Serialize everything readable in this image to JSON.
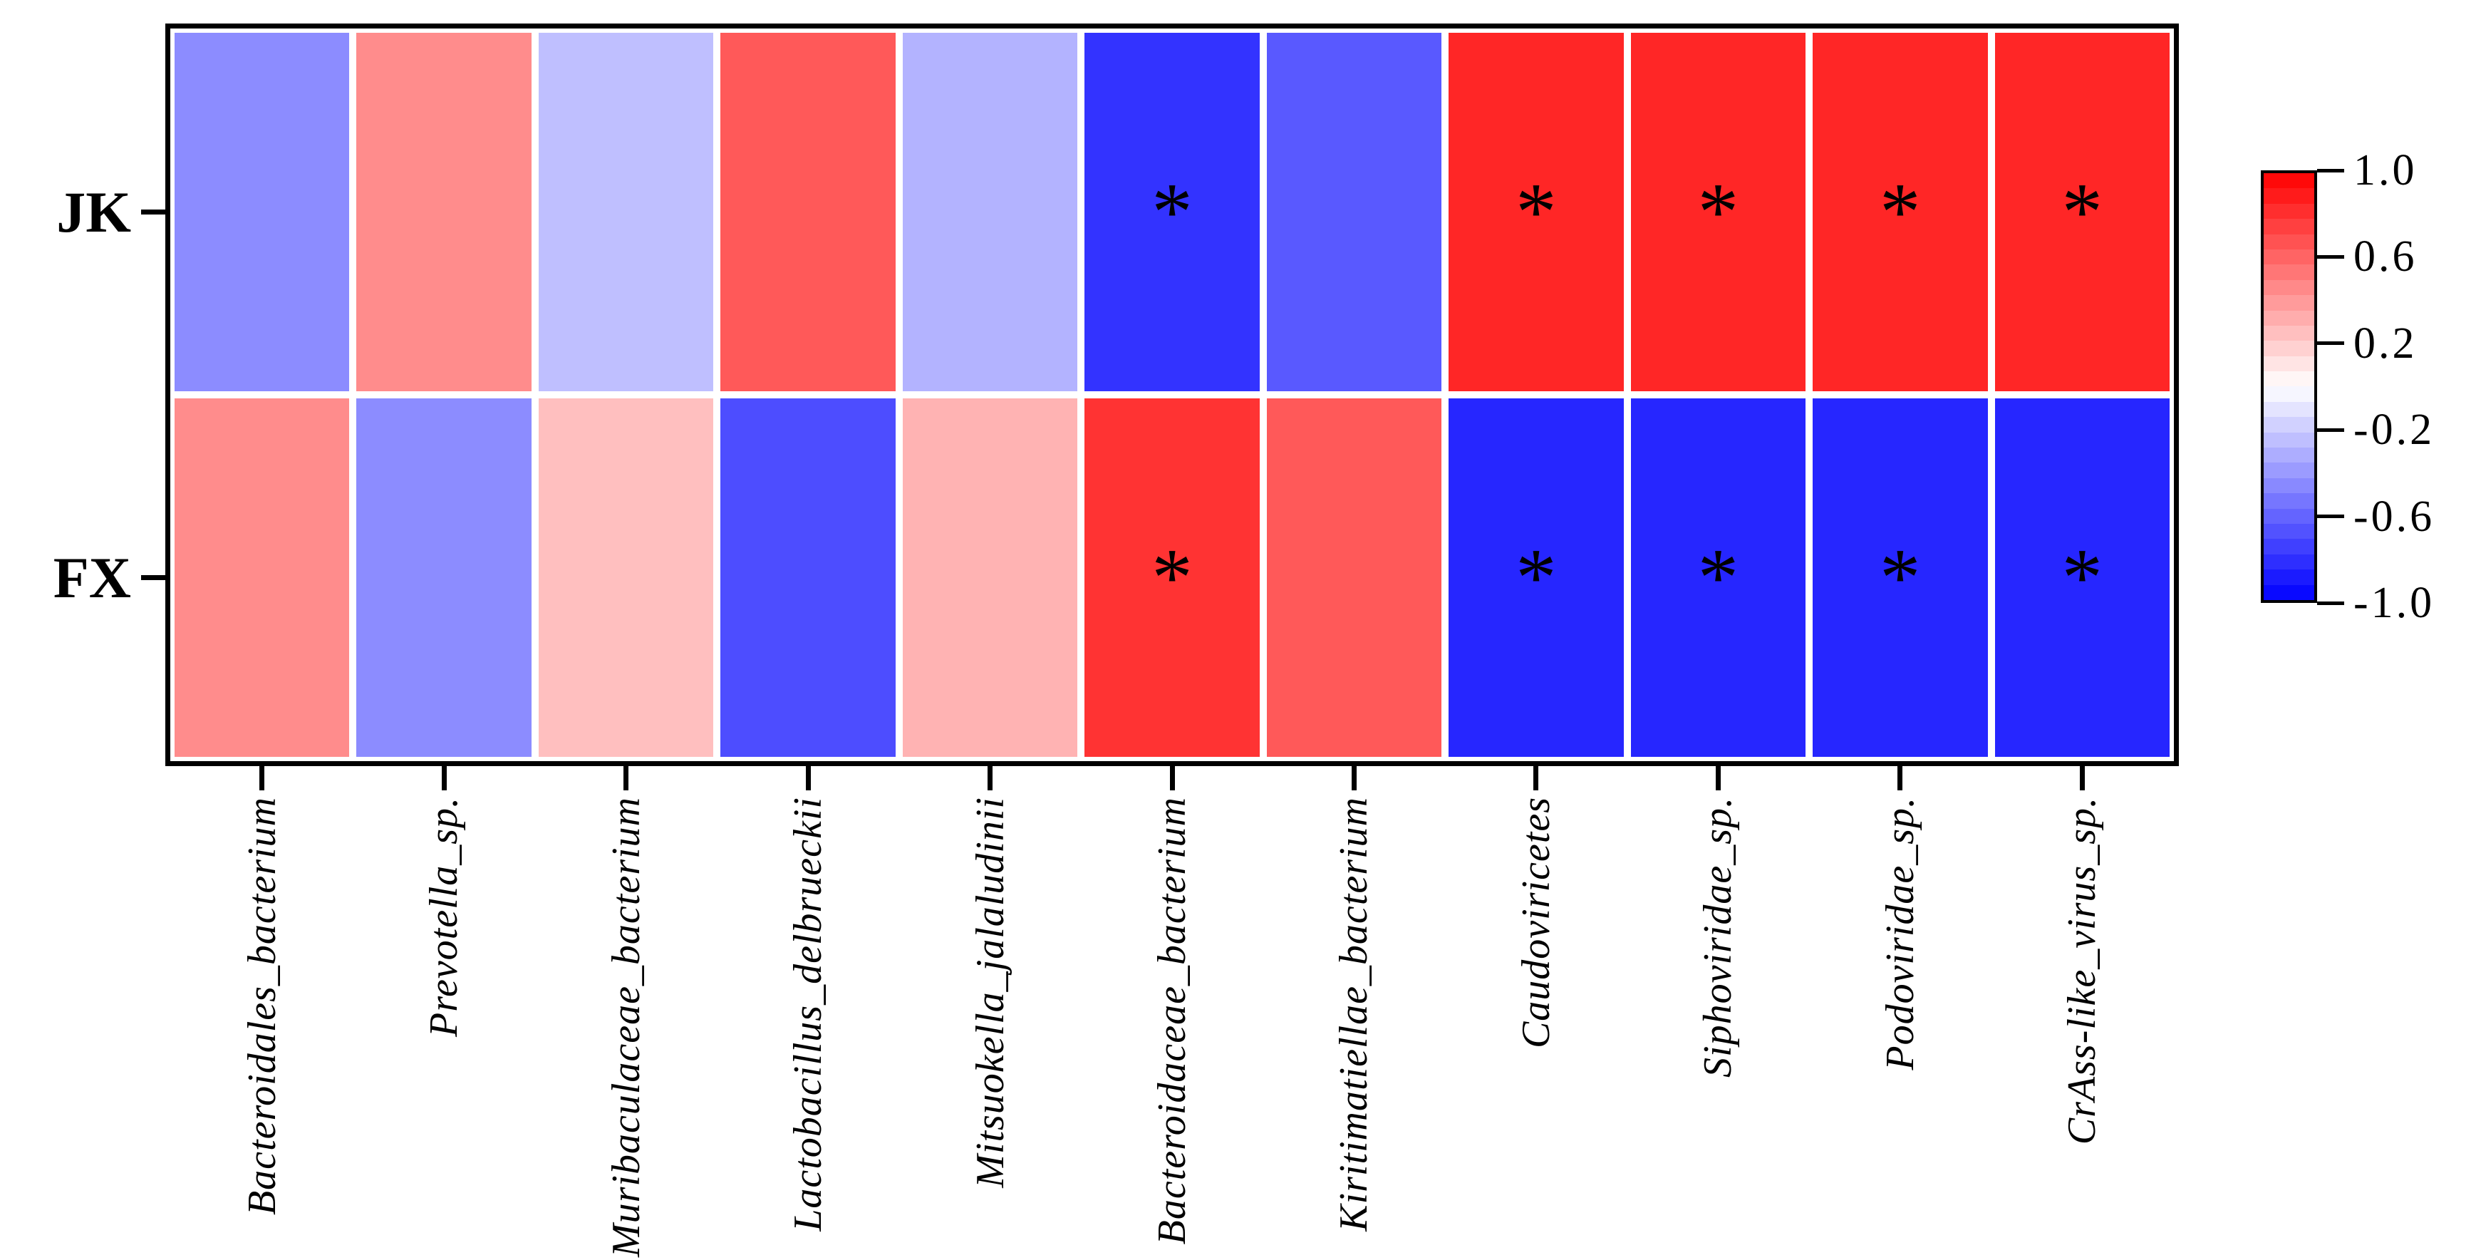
{
  "figure": {
    "kind": "correlation heatmap with significance asterisks and color scale legend"
  },
  "chart_data": {
    "type": "heatmap",
    "rows": [
      "JK",
      "FX"
    ],
    "categories": [
      "Bacteroidales_bacterium",
      "Prevotella_sp.",
      "Muribaculaceae_bacterium",
      "Lactobacillus_delbrueckii",
      "Mitsuokella_jalaludinii",
      "Bacteroidaceae_bacterium",
      "Kiritimatiellae_bacterium",
      "Caudoviricetes",
      "Siphoviridae_sp.",
      "Podoviridae_sp.",
      "CrAss-like_virus_sp."
    ],
    "series": [
      {
        "name": "JK",
        "values": [
          -0.45,
          0.45,
          -0.25,
          0.65,
          -0.3,
          -0.8,
          -0.65,
          0.85,
          0.85,
          0.85,
          0.85
        ],
        "significant": [
          false,
          false,
          false,
          false,
          false,
          true,
          false,
          true,
          true,
          true,
          true
        ]
      },
      {
        "name": "FX",
        "values": [
          0.45,
          -0.45,
          0.25,
          -0.7,
          0.3,
          0.8,
          0.65,
          -0.85,
          -0.85,
          -0.85,
          -0.85
        ],
        "significant": [
          false,
          false,
          false,
          false,
          false,
          true,
          false,
          true,
          true,
          true,
          true
        ]
      }
    ],
    "significance_marker": "*",
    "colorscale": {
      "name": "blue-white-red",
      "min": -1.0,
      "mid": 0.0,
      "max": 1.0,
      "min_color": "#0000ff",
      "mid_color": "#ffffff",
      "max_color": "#ff0000"
    },
    "colorbar_ticks": [
      "1.0",
      "0.6",
      "0.2",
      "-0.2",
      "-0.6",
      "-1.0"
    ],
    "colorbar_tick_values": [
      1.0,
      0.6,
      0.2,
      -0.2,
      -0.6,
      -1.0
    ],
    "legend_position": "right",
    "grid": false,
    "cell_gap_color": "#ffffff",
    "frame_color": "#000000"
  }
}
